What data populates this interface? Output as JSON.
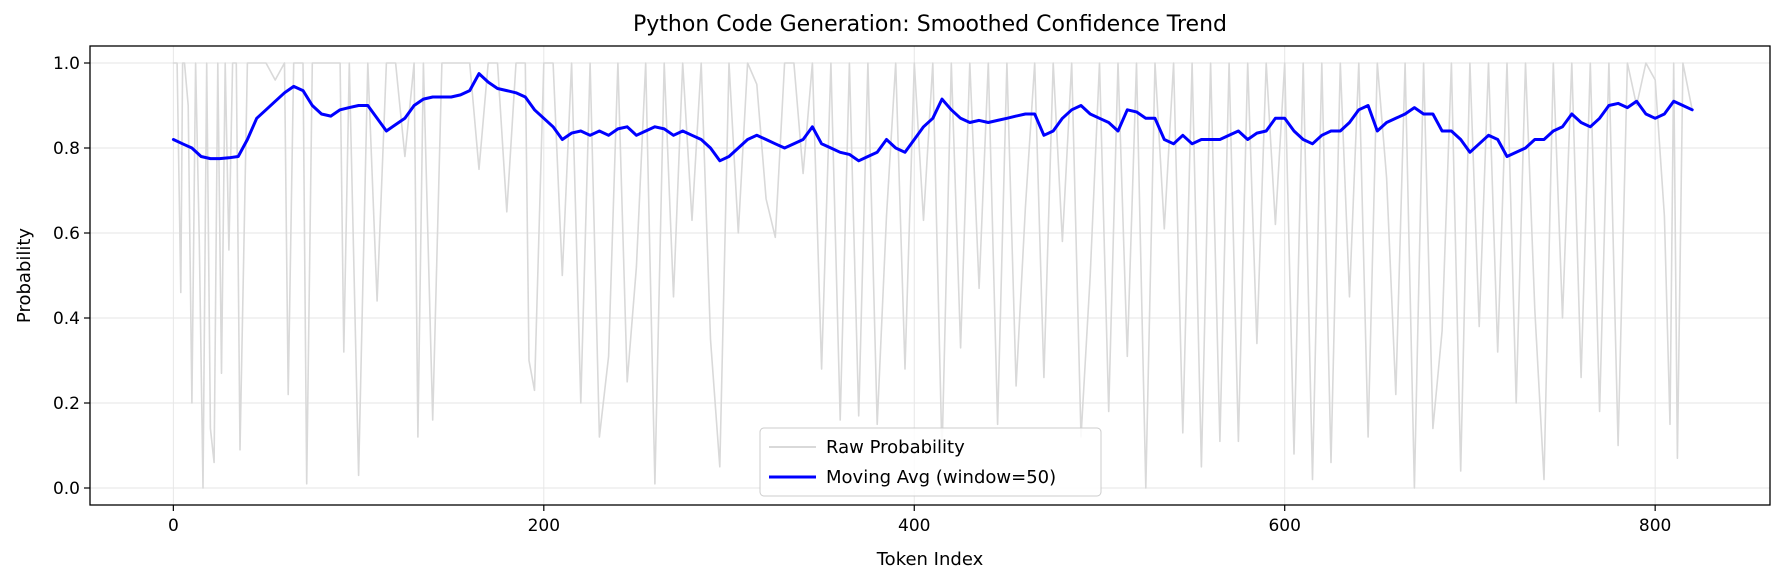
{
  "chart_data": {
    "type": "line",
    "title": "Python Code Generation: Smoothed Confidence Trend",
    "xlabel": "Token Index",
    "ylabel": "Probability",
    "xlim": [
      -45,
      862
    ],
    "ylim": [
      -0.04,
      1.04
    ],
    "xticks": [
      0,
      200,
      400,
      600,
      800
    ],
    "yticks": [
      0.0,
      0.2,
      0.4,
      0.6,
      0.8,
      1.0
    ],
    "grid": true,
    "legend_position": "bottom-center",
    "series": [
      {
        "name": "Raw Probability",
        "color": "#d9d9d9",
        "x": [
          0,
          2,
          4,
          5,
          6,
          8,
          10,
          12,
          14,
          16,
          18,
          20,
          22,
          24,
          26,
          28,
          30,
          32,
          34,
          36,
          40,
          45,
          50,
          55,
          60,
          62,
          65,
          70,
          72,
          75,
          80,
          85,
          90,
          92,
          95,
          100,
          105,
          110,
          115,
          120,
          125,
          130,
          132,
          135,
          140,
          145,
          150,
          155,
          160,
          165,
          170,
          175,
          180,
          185,
          190,
          192,
          195,
          200,
          205,
          210,
          215,
          220,
          225,
          230,
          235,
          240,
          245,
          250,
          255,
          260,
          265,
          270,
          275,
          280,
          285,
          290,
          295,
          300,
          305,
          310,
          315,
          320,
          325,
          330,
          335,
          340,
          345,
          350,
          355,
          360,
          365,
          370,
          375,
          380,
          385,
          390,
          395,
          400,
          405,
          410,
          415,
          420,
          425,
          430,
          435,
          440,
          445,
          450,
          455,
          460,
          465,
          470,
          475,
          480,
          485,
          490,
          495,
          500,
          505,
          510,
          515,
          520,
          525,
          530,
          535,
          540,
          545,
          550,
          555,
          560,
          565,
          570,
          575,
          580,
          585,
          590,
          595,
          600,
          605,
          610,
          615,
          620,
          625,
          630,
          635,
          640,
          645,
          650,
          655,
          660,
          665,
          670,
          675,
          680,
          685,
          690,
          695,
          700,
          705,
          710,
          715,
          720,
          725,
          730,
          735,
          740,
          745,
          750,
          755,
          760,
          765,
          770,
          775,
          780,
          785,
          790,
          795,
          800,
          805,
          808,
          810,
          812,
          815,
          820
        ],
        "values": [
          1.0,
          1.0,
          0.46,
          1.0,
          1.0,
          0.9,
          0.2,
          1.0,
          0.58,
          0.0,
          1.0,
          0.14,
          0.06,
          1.0,
          0.27,
          1.0,
          0.56,
          1.0,
          1.0,
          0.09,
          1.0,
          1.0,
          1.0,
          0.96,
          1.0,
          0.22,
          1.0,
          1.0,
          0.01,
          1.0,
          1.0,
          1.0,
          1.0,
          0.32,
          1.0,
          0.03,
          1.0,
          0.44,
          1.0,
          1.0,
          0.78,
          1.0,
          0.12,
          1.0,
          0.16,
          1.0,
          1.0,
          1.0,
          1.0,
          0.75,
          1.0,
          1.0,
          0.65,
          1.0,
          1.0,
          0.3,
          0.23,
          1.0,
          1.0,
          0.5,
          1.0,
          0.2,
          1.0,
          0.12,
          0.31,
          1.0,
          0.25,
          0.52,
          1.0,
          0.01,
          1.0,
          0.45,
          1.0,
          0.63,
          1.0,
          0.35,
          0.05,
          1.0,
          0.6,
          1.0,
          0.95,
          0.68,
          0.59,
          1.0,
          1.0,
          0.74,
          1.0,
          0.28,
          1.0,
          0.16,
          1.0,
          0.17,
          1.0,
          0.15,
          0.64,
          1.0,
          0.28,
          1.0,
          0.63,
          1.0,
          0.08,
          1.0,
          0.33,
          1.0,
          0.47,
          1.0,
          0.15,
          1.0,
          0.24,
          0.66,
          1.0,
          0.26,
          1.0,
          0.58,
          1.0,
          0.12,
          0.5,
          1.0,
          0.18,
          1.0,
          0.31,
          1.0,
          0.0,
          1.0,
          0.61,
          1.0,
          0.13,
          1.0,
          0.05,
          1.0,
          0.11,
          1.0,
          0.11,
          1.0,
          0.34,
          1.0,
          0.62,
          1.0,
          0.08,
          1.0,
          0.02,
          1.0,
          0.06,
          1.0,
          0.45,
          1.0,
          0.12,
          1.0,
          0.73,
          0.22,
          1.0,
          0.0,
          1.0,
          0.14,
          0.37,
          1.0,
          0.04,
          1.0,
          0.38,
          1.0,
          0.32,
          1.0,
          0.2,
          1.0,
          0.42,
          0.02,
          1.0,
          0.4,
          1.0,
          0.26,
          1.0,
          0.18,
          1.0,
          0.1,
          1.0,
          0.9,
          1.0,
          0.96,
          0.64,
          0.15,
          1.0,
          0.07,
          1.0,
          0.89
        ]
      },
      {
        "name": "Moving Avg (window=50)",
        "color": "#0000ff",
        "x": [
          0,
          5,
          10,
          15,
          20,
          25,
          30,
          35,
          40,
          45,
          50,
          55,
          60,
          65,
          70,
          75,
          80,
          85,
          90,
          95,
          100,
          105,
          110,
          115,
          120,
          125,
          130,
          135,
          140,
          145,
          150,
          155,
          160,
          165,
          170,
          175,
          180,
          185,
          190,
          195,
          200,
          205,
          210,
          215,
          220,
          225,
          230,
          235,
          240,
          245,
          250,
          255,
          260,
          265,
          270,
          275,
          280,
          285,
          290,
          295,
          300,
          305,
          310,
          315,
          320,
          325,
          330,
          335,
          340,
          345,
          350,
          355,
          360,
          365,
          370,
          375,
          380,
          385,
          390,
          395,
          400,
          405,
          410,
          415,
          420,
          425,
          430,
          435,
          440,
          445,
          450,
          455,
          460,
          465,
          470,
          475,
          480,
          485,
          490,
          495,
          500,
          505,
          510,
          515,
          520,
          525,
          530,
          535,
          540,
          545,
          550,
          555,
          560,
          565,
          570,
          575,
          580,
          585,
          590,
          595,
          600,
          605,
          610,
          615,
          620,
          625,
          630,
          635,
          640,
          645,
          650,
          655,
          660,
          665,
          670,
          675,
          680,
          685,
          690,
          695,
          700,
          705,
          710,
          715,
          720,
          725,
          730,
          735,
          740,
          745,
          750,
          755,
          760,
          765,
          770,
          775,
          780,
          785,
          790,
          795,
          800,
          805,
          810,
          815,
          820
        ],
        "values": [
          0.82,
          0.81,
          0.8,
          0.78,
          0.775,
          0.775,
          0.777,
          0.78,
          0.82,
          0.87,
          0.89,
          0.91,
          0.93,
          0.945,
          0.935,
          0.9,
          0.88,
          0.875,
          0.89,
          0.895,
          0.9,
          0.9,
          0.87,
          0.84,
          0.855,
          0.87,
          0.9,
          0.915,
          0.92,
          0.92,
          0.92,
          0.925,
          0.935,
          0.975,
          0.955,
          0.94,
          0.935,
          0.93,
          0.92,
          0.89,
          0.87,
          0.85,
          0.82,
          0.835,
          0.84,
          0.83,
          0.84,
          0.83,
          0.845,
          0.85,
          0.83,
          0.84,
          0.85,
          0.845,
          0.83,
          0.84,
          0.83,
          0.82,
          0.8,
          0.77,
          0.78,
          0.8,
          0.82,
          0.83,
          0.82,
          0.81,
          0.8,
          0.81,
          0.82,
          0.85,
          0.81,
          0.8,
          0.79,
          0.785,
          0.77,
          0.78,
          0.79,
          0.82,
          0.8,
          0.79,
          0.82,
          0.85,
          0.87,
          0.915,
          0.89,
          0.87,
          0.86,
          0.865,
          0.86,
          0.865,
          0.87,
          0.875,
          0.88,
          0.88,
          0.83,
          0.84,
          0.87,
          0.89,
          0.9,
          0.88,
          0.87,
          0.86,
          0.84,
          0.89,
          0.885,
          0.87,
          0.87,
          0.82,
          0.81,
          0.83,
          0.81,
          0.82,
          0.82,
          0.82,
          0.83,
          0.84,
          0.82,
          0.835,
          0.84,
          0.87,
          0.87,
          0.84,
          0.82,
          0.81,
          0.83,
          0.84,
          0.84,
          0.86,
          0.89,
          0.9,
          0.84,
          0.86,
          0.87,
          0.88,
          0.895,
          0.88,
          0.88,
          0.84,
          0.84,
          0.82,
          0.79,
          0.81,
          0.83,
          0.82,
          0.78,
          0.79,
          0.8,
          0.82,
          0.82,
          0.84,
          0.85,
          0.88,
          0.86,
          0.85,
          0.87,
          0.9,
          0.905,
          0.895,
          0.91,
          0.88,
          0.87,
          0.88,
          0.91,
          0.9,
          0.89
        ]
      }
    ]
  }
}
